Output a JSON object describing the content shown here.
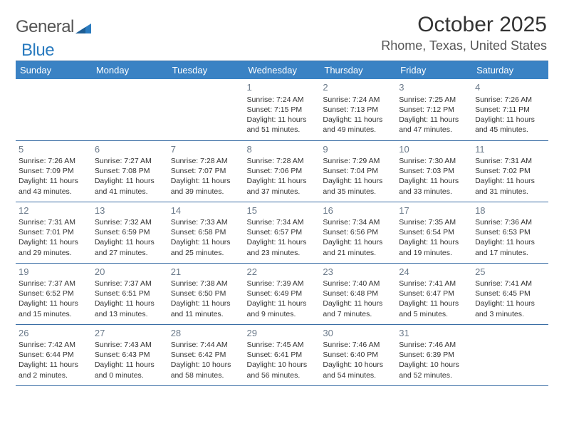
{
  "brand": {
    "name_left": "General",
    "name_right": "Blue"
  },
  "header": {
    "title": "October 2025",
    "location": "Rhome, Texas, United States"
  },
  "theme": {
    "header_bg": "#3a82c4",
    "header_fg": "#ffffff",
    "grid_line": "#3a6ea5",
    "daynum_color": "#6b7a8a",
    "logo_blue": "#2a7bbf",
    "logo_gray": "#555555"
  },
  "calendar": {
    "day_names": [
      "Sunday",
      "Monday",
      "Tuesday",
      "Wednesday",
      "Thursday",
      "Friday",
      "Saturday"
    ],
    "weeks": [
      [
        null,
        null,
        null,
        {
          "day": "1",
          "sunrise": "7:24 AM",
          "sunset": "7:15 PM",
          "daylight": "11 hours and 51 minutes."
        },
        {
          "day": "2",
          "sunrise": "7:24 AM",
          "sunset": "7:13 PM",
          "daylight": "11 hours and 49 minutes."
        },
        {
          "day": "3",
          "sunrise": "7:25 AM",
          "sunset": "7:12 PM",
          "daylight": "11 hours and 47 minutes."
        },
        {
          "day": "4",
          "sunrise": "7:26 AM",
          "sunset": "7:11 PM",
          "daylight": "11 hours and 45 minutes."
        }
      ],
      [
        {
          "day": "5",
          "sunrise": "7:26 AM",
          "sunset": "7:09 PM",
          "daylight": "11 hours and 43 minutes."
        },
        {
          "day": "6",
          "sunrise": "7:27 AM",
          "sunset": "7:08 PM",
          "daylight": "11 hours and 41 minutes."
        },
        {
          "day": "7",
          "sunrise": "7:28 AM",
          "sunset": "7:07 PM",
          "daylight": "11 hours and 39 minutes."
        },
        {
          "day": "8",
          "sunrise": "7:28 AM",
          "sunset": "7:06 PM",
          "daylight": "11 hours and 37 minutes."
        },
        {
          "day": "9",
          "sunrise": "7:29 AM",
          "sunset": "7:04 PM",
          "daylight": "11 hours and 35 minutes."
        },
        {
          "day": "10",
          "sunrise": "7:30 AM",
          "sunset": "7:03 PM",
          "daylight": "11 hours and 33 minutes."
        },
        {
          "day": "11",
          "sunrise": "7:31 AM",
          "sunset": "7:02 PM",
          "daylight": "11 hours and 31 minutes."
        }
      ],
      [
        {
          "day": "12",
          "sunrise": "7:31 AM",
          "sunset": "7:01 PM",
          "daylight": "11 hours and 29 minutes."
        },
        {
          "day": "13",
          "sunrise": "7:32 AM",
          "sunset": "6:59 PM",
          "daylight": "11 hours and 27 minutes."
        },
        {
          "day": "14",
          "sunrise": "7:33 AM",
          "sunset": "6:58 PM",
          "daylight": "11 hours and 25 minutes."
        },
        {
          "day": "15",
          "sunrise": "7:34 AM",
          "sunset": "6:57 PM",
          "daylight": "11 hours and 23 minutes."
        },
        {
          "day": "16",
          "sunrise": "7:34 AM",
          "sunset": "6:56 PM",
          "daylight": "11 hours and 21 minutes."
        },
        {
          "day": "17",
          "sunrise": "7:35 AM",
          "sunset": "6:54 PM",
          "daylight": "11 hours and 19 minutes."
        },
        {
          "day": "18",
          "sunrise": "7:36 AM",
          "sunset": "6:53 PM",
          "daylight": "11 hours and 17 minutes."
        }
      ],
      [
        {
          "day": "19",
          "sunrise": "7:37 AM",
          "sunset": "6:52 PM",
          "daylight": "11 hours and 15 minutes."
        },
        {
          "day": "20",
          "sunrise": "7:37 AM",
          "sunset": "6:51 PM",
          "daylight": "11 hours and 13 minutes."
        },
        {
          "day": "21",
          "sunrise": "7:38 AM",
          "sunset": "6:50 PM",
          "daylight": "11 hours and 11 minutes."
        },
        {
          "day": "22",
          "sunrise": "7:39 AM",
          "sunset": "6:49 PM",
          "daylight": "11 hours and 9 minutes."
        },
        {
          "day": "23",
          "sunrise": "7:40 AM",
          "sunset": "6:48 PM",
          "daylight": "11 hours and 7 minutes."
        },
        {
          "day": "24",
          "sunrise": "7:41 AM",
          "sunset": "6:47 PM",
          "daylight": "11 hours and 5 minutes."
        },
        {
          "day": "25",
          "sunrise": "7:41 AM",
          "sunset": "6:45 PM",
          "daylight": "11 hours and 3 minutes."
        }
      ],
      [
        {
          "day": "26",
          "sunrise": "7:42 AM",
          "sunset": "6:44 PM",
          "daylight": "11 hours and 2 minutes."
        },
        {
          "day": "27",
          "sunrise": "7:43 AM",
          "sunset": "6:43 PM",
          "daylight": "11 hours and 0 minutes."
        },
        {
          "day": "28",
          "sunrise": "7:44 AM",
          "sunset": "6:42 PM",
          "daylight": "10 hours and 58 minutes."
        },
        {
          "day": "29",
          "sunrise": "7:45 AM",
          "sunset": "6:41 PM",
          "daylight": "10 hours and 56 minutes."
        },
        {
          "day": "30",
          "sunrise": "7:46 AM",
          "sunset": "6:40 PM",
          "daylight": "10 hours and 54 minutes."
        },
        {
          "day": "31",
          "sunrise": "7:46 AM",
          "sunset": "6:39 PM",
          "daylight": "10 hours and 52 minutes."
        },
        null
      ]
    ],
    "labels": {
      "sunrise": "Sunrise:",
      "sunset": "Sunset:",
      "daylight": "Daylight:"
    }
  }
}
